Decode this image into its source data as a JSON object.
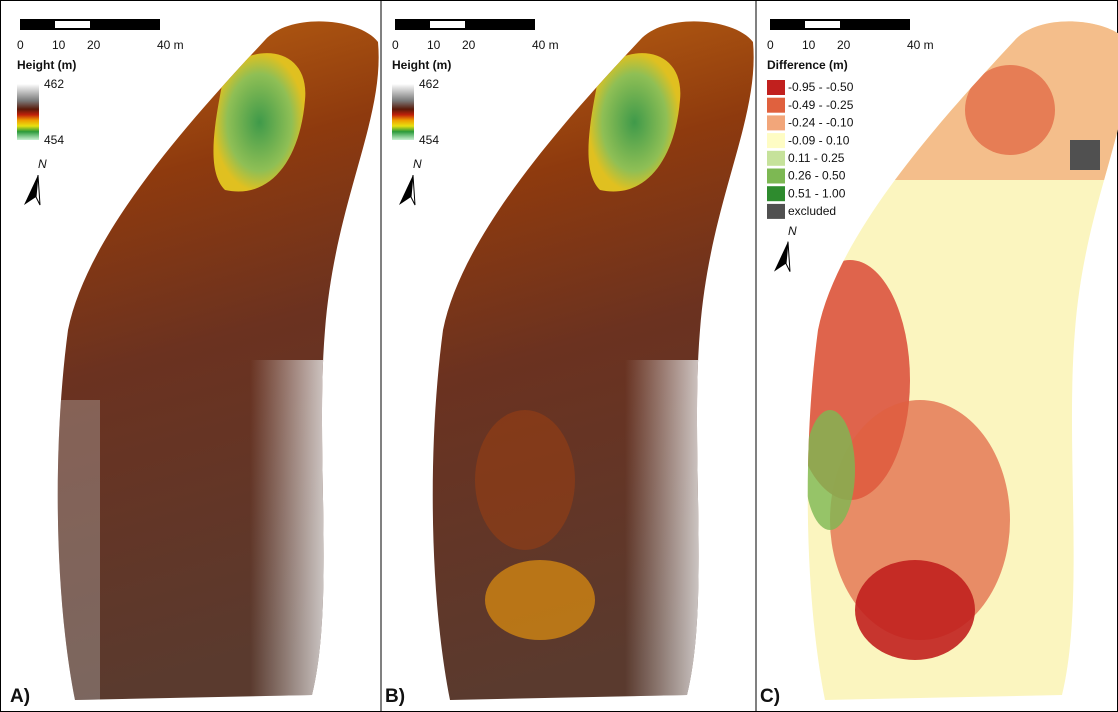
{
  "panels": [
    {
      "label": "A)",
      "scale_bar": [
        "0",
        "10",
        "20",
        "40 m"
      ],
      "north": "N",
      "legend": {
        "title": "Height (m)",
        "max": "462",
        "min": "454"
      }
    },
    {
      "label": "B)",
      "scale_bar": [
        "0",
        "10",
        "20",
        "40 m"
      ],
      "north": "N",
      "legend": {
        "title": "Height (m)",
        "max": "462",
        "min": "454"
      }
    },
    {
      "label": "C)",
      "scale_bar": [
        "0",
        "10",
        "20",
        "40 m"
      ],
      "north": "N",
      "legend": {
        "title": "Difference (m)",
        "classes": [
          {
            "label": "-0.95 - -0.50",
            "color": "#c1201e"
          },
          {
            "label": "-0.49 - -0.25",
            "color": "#e0613e"
          },
          {
            "label": "-0.24 - -0.10",
            "color": "#f2a67a"
          },
          {
            "label": "-0.09 - 0.10",
            "color": "#fefcc4"
          },
          {
            "label": "0.11 - 0.25",
            "color": "#c6e29b"
          },
          {
            "label": "0.26 - 0.50",
            "color": "#7db853"
          },
          {
            "label": "0.51 - 1.00",
            "color": "#2e8b2e"
          },
          {
            "label": "excluded",
            "color": "#505050"
          }
        ]
      }
    }
  ]
}
